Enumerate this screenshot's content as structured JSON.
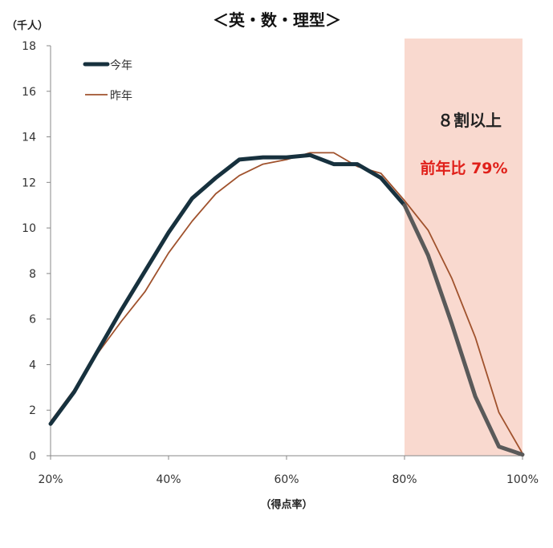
{
  "chart_data": {
    "type": "line",
    "title": "＜英・数・理型＞",
    "ylabel": "（千人）",
    "xlabel": "（得点率）",
    "ylim": [
      0,
      18
    ],
    "yticks": [
      "0",
      "2",
      "4",
      "6",
      "8",
      "10",
      "12",
      "14",
      "16",
      "18"
    ],
    "xlim": [
      20,
      100
    ],
    "xticks": [
      "20%",
      "40%",
      "60%",
      "80%",
      "100%"
    ],
    "grid": false,
    "legend": "top-left",
    "highlight": {
      "x_range": [
        80,
        100
      ],
      "color": "#f9d9cf",
      "label": "８割以上",
      "note": "前年比 79%"
    },
    "series": [
      {
        "name": "今年",
        "color": "#17313e",
        "color_highlight": "#5a5a5a",
        "x": [
          20,
          24,
          28,
          32,
          36,
          40,
          44,
          48,
          52,
          56,
          60,
          64,
          68,
          72,
          76,
          80,
          84,
          88,
          92,
          96,
          100
        ],
        "values": [
          1.4,
          2.8,
          4.6,
          6.4,
          8.1,
          9.8,
          11.3,
          12.2,
          13.0,
          13.1,
          13.1,
          13.2,
          12.8,
          12.8,
          12.2,
          11.0,
          8.8,
          5.8,
          2.6,
          0.4,
          0.05
        ]
      },
      {
        "name": "昨年",
        "color": "#a0522d",
        "x": [
          20,
          24,
          28,
          32,
          36,
          40,
          44,
          48,
          52,
          56,
          60,
          64,
          68,
          72,
          76,
          80,
          84,
          88,
          92,
          96,
          100
        ],
        "values": [
          1.5,
          2.9,
          4.5,
          5.9,
          7.2,
          8.9,
          10.3,
          11.5,
          12.3,
          12.8,
          13.0,
          13.3,
          13.3,
          12.7,
          12.4,
          11.2,
          9.9,
          7.8,
          5.2,
          1.9,
          0.1
        ]
      }
    ]
  }
}
